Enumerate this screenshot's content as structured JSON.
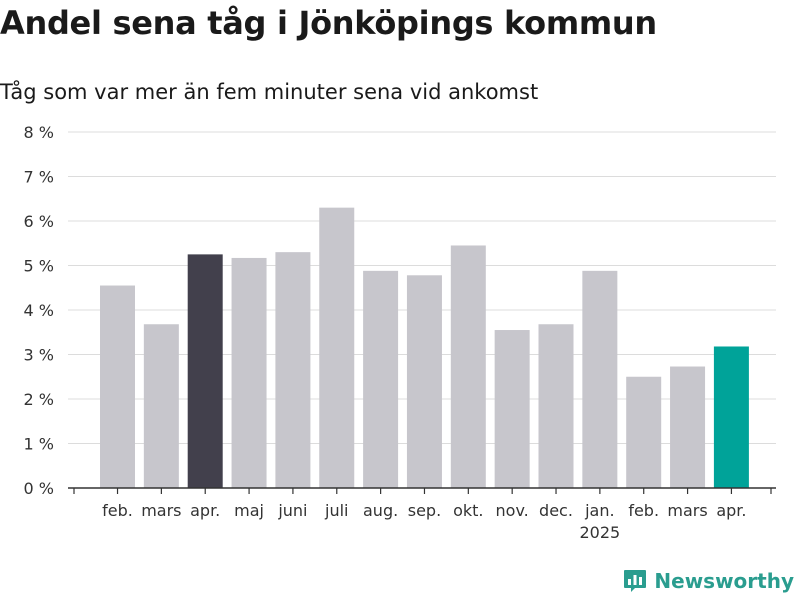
{
  "chart_data": {
    "type": "bar",
    "title": "Andel sena tåg i Jönköpings kommun",
    "subtitle": "Tåg som var mer än fem minuter sena vid ankomst",
    "categories": [
      "feb.",
      "mars",
      "apr.",
      "maj",
      "juni",
      "juli",
      "aug.",
      "sep.",
      "okt.",
      "nov.",
      "dec.",
      "jan.",
      "feb.",
      "mars",
      "apr."
    ],
    "year_label": "2025",
    "year_label_under_index": 11,
    "values": [
      4.55,
      3.68,
      5.25,
      5.17,
      5.3,
      6.3,
      4.88,
      4.78,
      5.45,
      3.55,
      3.68,
      4.88,
      2.5,
      2.73,
      3.18
    ],
    "highlight": {
      "2": "#42404c",
      "14": "#00a399"
    },
    "default_color": "#c7c6cc",
    "ylim": [
      0,
      8
    ],
    "yticks": [
      0,
      1,
      2,
      3,
      4,
      5,
      6,
      7,
      8
    ],
    "ytick_labels": [
      "0 %",
      "1 %",
      "2 %",
      "3 %",
      "4 %",
      "5 %",
      "6 %",
      "7 %",
      "8 %"
    ],
    "grid": true,
    "xlabel": "",
    "ylabel": ""
  },
  "branding": {
    "name": "Newsworthy",
    "color": "#2a9d8f",
    "icon": "newsworthy-logo-icon"
  }
}
